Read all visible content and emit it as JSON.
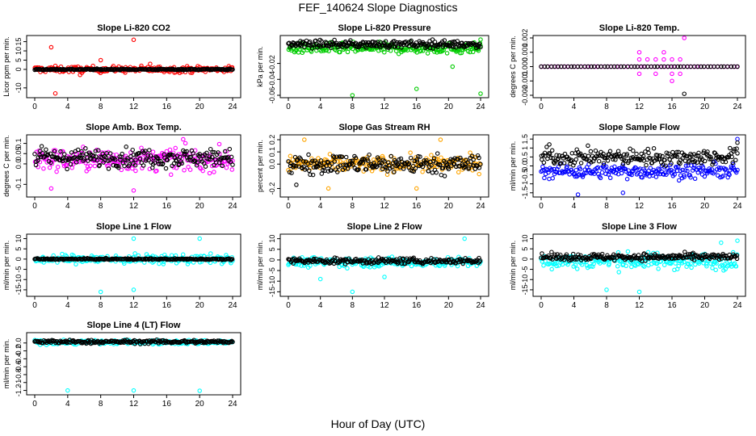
{
  "page": {
    "title": "FEF_140624  Slope Diagnostics",
    "xlabel": "Hour of Day (UTC)"
  },
  "chart_data": [
    {
      "type": "scatter",
      "title": "Slope Li-820 CO2",
      "ylabel": "Licor ppm per min.",
      "ylim": [
        -14,
        17
      ],
      "yticks": [
        -10,
        0,
        5,
        10,
        15
      ],
      "xlim": [
        0,
        24
      ],
      "xticks": [
        0,
        4,
        8,
        12,
        16,
        20,
        24
      ],
      "grid": false,
      "series": [
        {
          "color": "#ff0000",
          "center": 0,
          "spread": 1.5,
          "outliers": [
            [
              2,
              12
            ],
            [
              12,
              16
            ],
            [
              2.5,
              -13
            ],
            [
              5.5,
              -3
            ],
            [
              8,
              5
            ],
            [
              14,
              3
            ]
          ]
        },
        {
          "color": "#000000",
          "center": 0,
          "spread": 0.3,
          "outliers": []
        }
      ]
    },
    {
      "type": "scatter",
      "title": "Slope Li-820 Pressure",
      "ylabel": "kPa per min.",
      "ylim": [
        -0.06,
        0.012
      ],
      "yticks": [
        -0.06,
        -0.04,
        -0.02
      ],
      "xlim": [
        0,
        24
      ],
      "xticks": [
        0,
        4,
        8,
        12,
        16,
        20,
        24
      ],
      "grid": false,
      "series": [
        {
          "color": "#00cc00",
          "center": -0.001,
          "spread": 0.006,
          "outliers": [
            [
              8,
              -0.06
            ],
            [
              16,
              -0.052
            ],
            [
              20.5,
              -0.024
            ],
            [
              24,
              -0.058
            ],
            [
              24,
              0.01
            ]
          ]
        },
        {
          "color": "#000000",
          "center": 0.004,
          "spread": 0.004,
          "outliers": [
            [
              1.5,
              0.008
            ],
            [
              18,
              0.01
            ]
          ]
        }
      ]
    },
    {
      "type": "scatter",
      "title": "Slope Li-820 Temp.",
      "ylabel": "degrees C per min.",
      "ylim": [
        -0.002,
        0.002
      ],
      "yticks": [
        -0.002,
        -0.001,
        0.0,
        0.001,
        0.002
      ],
      "xlim": [
        0,
        24
      ],
      "xticks": [
        0,
        4,
        8,
        12,
        16,
        20,
        24
      ],
      "grid": false,
      "series": [
        {
          "color": "#ff00ff",
          "center": 0,
          "spread": 0,
          "outliers": [
            [
              12,
              0.0005
            ],
            [
              13,
              0.0005
            ],
            [
              14,
              0.0005
            ],
            [
              15,
              0.0005
            ],
            [
              16,
              0.0005
            ],
            [
              17,
              0.0005
            ],
            [
              12,
              -0.0005
            ],
            [
              14,
              -0.0005
            ],
            [
              16,
              -0.0005
            ],
            [
              17,
              -0.0005
            ],
            [
              17.5,
              0.002
            ],
            [
              12,
              0.001
            ],
            [
              16,
              -0.001
            ],
            [
              15,
              0.001
            ]
          ]
        },
        {
          "color": "#000000",
          "center": 0,
          "spread": 0,
          "outliers": [
            [
              17.5,
              -0.0019
            ]
          ]
        }
      ]
    },
    {
      "type": "scatter",
      "title": "Slope Amb. Box Temp.",
      "ylabel": "degrees C per min.",
      "ylim": [
        -0.15,
        0.13
      ],
      "yticks": [
        -0.1,
        0.0,
        0.05,
        0.1
      ],
      "xlim": [
        0,
        24
      ],
      "xticks": [
        0,
        4,
        8,
        12,
        16,
        20,
        24
      ],
      "grid": false,
      "series": [
        {
          "color": "#ff00ff",
          "center": 0.02,
          "spread": 0.05,
          "outliers": [
            [
              12,
              -0.13
            ],
            [
              2,
              -0.12
            ],
            [
              18,
              0.12
            ]
          ]
        },
        {
          "color": "#000000",
          "center": 0.03,
          "spread": 0.04,
          "outliers": []
        }
      ]
    },
    {
      "type": "scatter",
      "title": "Slope Gas Stream RH",
      "ylabel": "percent per min.",
      "ylim": [
        -0.25,
        0.22
      ],
      "yticks": [
        -0.2,
        0.0,
        0.1,
        0.2
      ],
      "xlim": [
        0,
        24
      ],
      "xticks": [
        0,
        4,
        8,
        12,
        16,
        20,
        24
      ],
      "grid": false,
      "series": [
        {
          "color": "#ffa500",
          "center": 0,
          "spread": 0.06,
          "outliers": [
            [
              2,
              0.2
            ],
            [
              19,
              0.2
            ],
            [
              5,
              -0.2
            ],
            [
              16,
              -0.2
            ]
          ]
        },
        {
          "color": "#000000",
          "center": 0,
          "spread": 0.07,
          "outliers": [
            [
              1,
              -0.17
            ]
          ]
        }
      ]
    },
    {
      "type": "scatter",
      "title": "Slope Sample Flow",
      "ylabel": "ml/min per min.",
      "ylim": [
        -1.6,
        1.6
      ],
      "yticks": [
        -1.5,
        -1.0,
        -0.5,
        0.0,
        0.5,
        1.0,
        1.5
      ],
      "xlim": [
        0,
        24
      ],
      "xticks": [
        0,
        4,
        8,
        12,
        16,
        20,
        24
      ],
      "grid": false,
      "series": [
        {
          "color": "#0000ff",
          "center": -0.3,
          "spread": 0.35,
          "outliers": [
            [
              24,
              1.5
            ],
            [
              4.5,
              -1.6
            ],
            [
              10,
              -1.5
            ]
          ]
        },
        {
          "color": "#000000",
          "center": 0.5,
          "spread": 0.4,
          "outliers": [
            [
              1,
              1.2
            ],
            [
              24,
              1.3
            ]
          ]
        }
      ]
    },
    {
      "type": "scatter",
      "title": "Slope Line 1 Flow",
      "ylabel": "ml/min per min.",
      "ylim": [
        -17,
        11
      ],
      "yticks": [
        -15,
        -10,
        -5,
        0,
        5,
        10
      ],
      "xlim": [
        0,
        24
      ],
      "xticks": [
        0,
        4,
        8,
        12,
        16,
        20,
        24
      ],
      "grid": false,
      "series": [
        {
          "color": "#00ffff",
          "center": 0,
          "spread": 2,
          "outliers": [
            [
              8,
              -16
            ],
            [
              12,
              10
            ],
            [
              20,
              10
            ],
            [
              12,
              -15
            ]
          ]
        },
        {
          "color": "#000000",
          "center": 0,
          "spread": 0.3,
          "outliers": []
        }
      ]
    },
    {
      "type": "scatter",
      "title": "Slope Line 2 Flow",
      "ylabel": "ml/min per min.",
      "ylim": [
        -16,
        11
      ],
      "yticks": [
        -15,
        -10,
        -5,
        0,
        5,
        10
      ],
      "xlim": [
        0,
        24
      ],
      "xticks": [
        0,
        4,
        8,
        12,
        16,
        20,
        24
      ],
      "grid": false,
      "series": [
        {
          "color": "#00ffff",
          "center": -1,
          "spread": 2,
          "outliers": [
            [
              8,
              -15
            ],
            [
              22,
              10
            ],
            [
              4,
              -9
            ],
            [
              12,
              -8
            ]
          ]
        },
        {
          "color": "#000000",
          "center": -0.5,
          "spread": 1.2,
          "outliers": []
        }
      ]
    },
    {
      "type": "scatter",
      "title": "Slope Line 3 Flow",
      "ylabel": "ml/min per min.",
      "ylim": [
        -17,
        11
      ],
      "yticks": [
        -15,
        -10,
        -5,
        0,
        5,
        10
      ],
      "xlim": [
        0,
        24
      ],
      "xticks": [
        0,
        4,
        8,
        12,
        16,
        20,
        24
      ],
      "grid": false,
      "series": [
        {
          "color": "#00ffff",
          "center": -1,
          "spread": 3.5,
          "outliers": [
            [
              8,
              -15
            ],
            [
              12,
              -16
            ],
            [
              24,
              9
            ],
            [
              22,
              8
            ]
          ]
        },
        {
          "color": "#000000",
          "center": 1,
          "spread": 1.5,
          "outliers": []
        }
      ]
    },
    {
      "type": "scatter",
      "title": "Slope Line 4 (LT) Flow",
      "ylabel": "ml/min per min.",
      "ylim": [
        -1.25,
        0.2
      ],
      "yticks": [
        -1.2,
        -1.0,
        -0.8,
        -0.6,
        -0.4,
        -0.2,
        0.0
      ],
      "xlim": [
        0,
        24
      ],
      "xticks": [
        0,
        4,
        8,
        12,
        16,
        20,
        24
      ],
      "grid": false,
      "series": [
        {
          "color": "#00ffff",
          "center": 0.02,
          "spread": 0.05,
          "outliers": [
            [
              4,
              -1.2
            ],
            [
              12,
              -1.2
            ],
            [
              20,
              -1.21
            ]
          ]
        },
        {
          "color": "#000000",
          "center": 0.03,
          "spread": 0.04,
          "outliers": []
        }
      ]
    }
  ]
}
